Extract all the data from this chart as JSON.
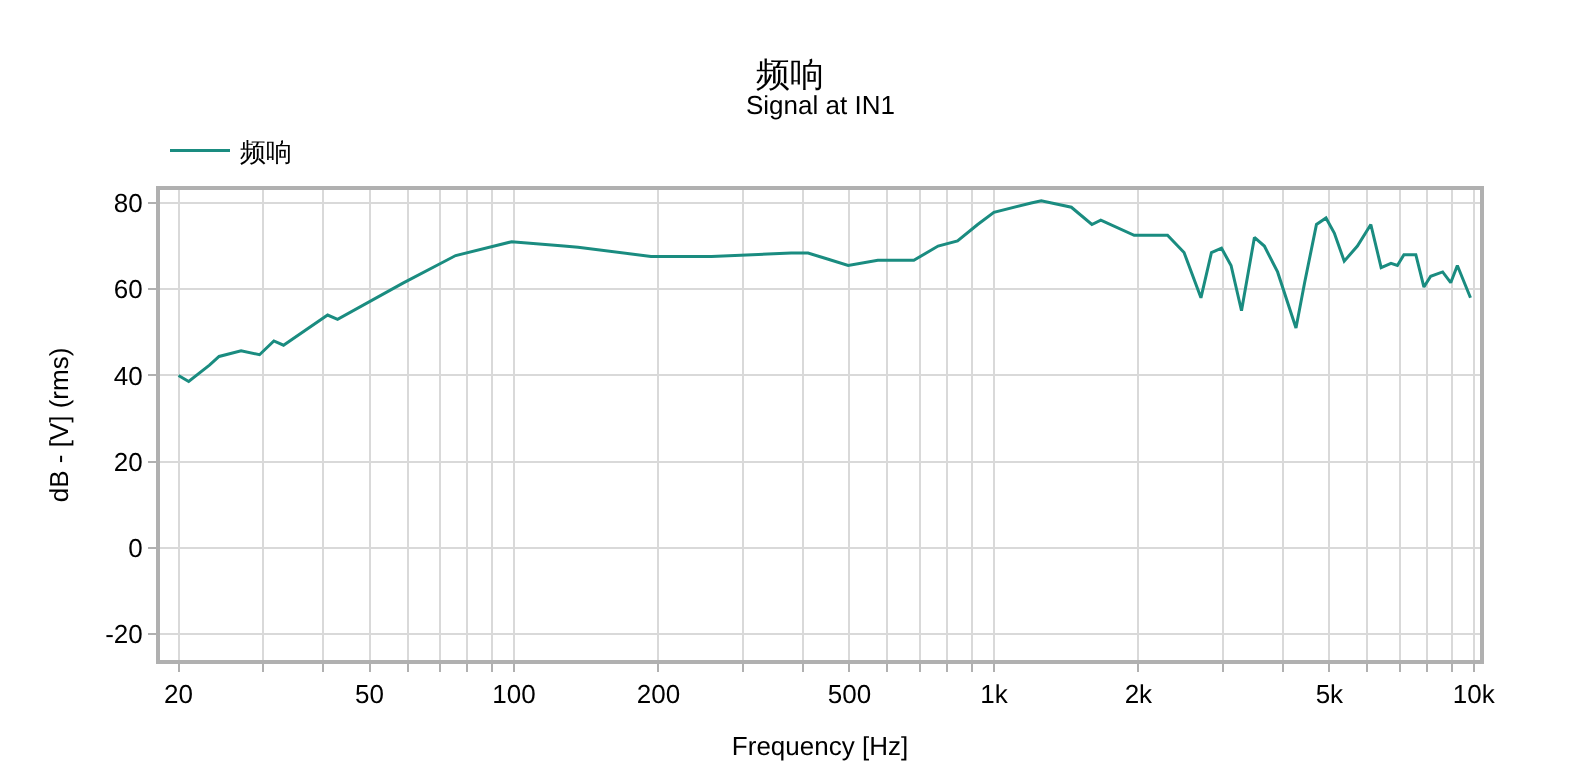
{
  "chart_data": {
    "type": "line",
    "title": "频响",
    "subtitle": "Signal at IN1",
    "xlabel": "Frequency [Hz]",
    "ylabel": "dB - [V] (rms)",
    "log": "x",
    "grid": true,
    "legend": "top left",
    "marker": "none",
    "line_style": "solid",
    "xlim": [
      18.3,
      10300
    ],
    "ylim": [
      -26,
      83
    ],
    "xticks": [
      20,
      {
        "value": 30,
        "label": null
      },
      {
        "value": 40,
        "label": null
      },
      50,
      {
        "value": 60,
        "label": null
      },
      {
        "value": 70,
        "label": null
      },
      {
        "value": 80,
        "label": null
      },
      {
        "value": 90,
        "label": null
      },
      100,
      200,
      {
        "value": 300,
        "label": null
      },
      {
        "value": 400,
        "label": null
      },
      500,
      {
        "value": 600,
        "label": null
      },
      {
        "value": 700,
        "label": null
      },
      {
        "value": 800,
        "label": null
      },
      {
        "value": 900,
        "label": null
      },
      {
        "value": 1000,
        "label": "1k"
      },
      {
        "value": 2000,
        "label": "2k"
      },
      {
        "value": 3000,
        "label": null
      },
      {
        "value": 4000,
        "label": null
      },
      {
        "value": 5000,
        "label": "5k"
      },
      {
        "value": 6000,
        "label": null
      },
      {
        "value": 7000,
        "label": null
      },
      {
        "value": 8000,
        "label": null
      },
      {
        "value": 9000,
        "label": null
      },
      {
        "value": 10000,
        "label": "10k"
      }
    ],
    "yticks": [
      -20,
      0,
      20,
      40,
      60,
      80
    ],
    "series": [
      {
        "name": "频响",
        "color": "#1a8c80",
        "x": [
          20,
          21,
          23.2,
          24.3,
          27,
          29.5,
          31.6,
          33.1,
          40.9,
          42.9,
          58.7,
          75.6,
          98.9,
          127,
          136,
          193,
          258,
          378,
          410,
          450,
          497,
          573,
          681,
          765,
          840,
          925,
          1000,
          1196,
          1255,
          1450,
          1600,
          1670,
          1960,
          2300,
          2490,
          2700,
          2840,
          2980,
          3120,
          3280,
          3490,
          3660,
          3900,
          4260,
          4440,
          4700,
          4920,
          5120,
          5370,
          5720,
          6100,
          6410,
          6720,
          6930,
          7150,
          7570,
          7870,
          8130,
          8610,
          8950,
          9240,
          9840
        ],
        "values": [
          40,
          38.6,
          42.4,
          44.4,
          45.7,
          44.8,
          48,
          47,
          54,
          53,
          61.4,
          67.8,
          71,
          70,
          69.7,
          67.6,
          67.6,
          68.4,
          68.4,
          67,
          65.5,
          66.7,
          66.7,
          70,
          71.2,
          75,
          77.8,
          80,
          80.5,
          79,
          75,
          76,
          72.5,
          72.5,
          68.5,
          58,
          68.5,
          69.5,
          65.5,
          55,
          72,
          70,
          64,
          51,
          61.5,
          75,
          76.5,
          73,
          66.5,
          70,
          75,
          65,
          66,
          65.5,
          68,
          68,
          60.5,
          63,
          64,
          61.5,
          65.5,
          58
        ]
      }
    ]
  }
}
